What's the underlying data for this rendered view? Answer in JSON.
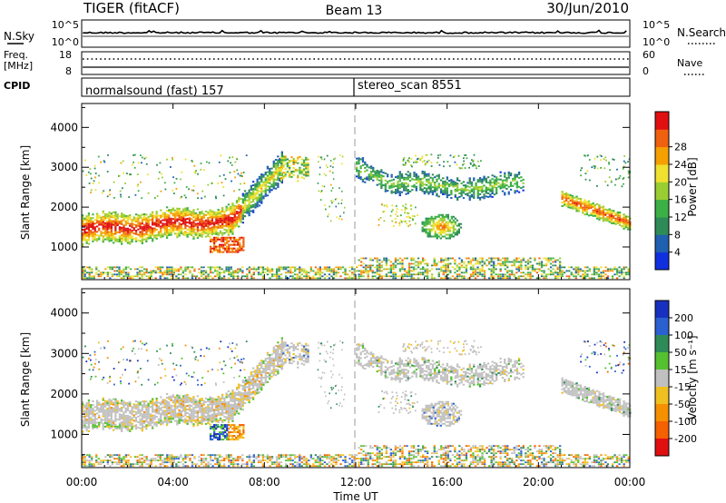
{
  "header": {
    "station": "TIGER (fitACF)",
    "beam": "Beam 13",
    "date": "30/Jun/2010"
  },
  "info_panels": {
    "nsky": {
      "label": "N.Sky",
      "ticks": [
        "10^5",
        "10^0"
      ],
      "right_label": "N.Search",
      "right_ticks": [
        "10^5",
        "10^0"
      ]
    },
    "freq": {
      "label_line1": "Freq.",
      "label_line2": "[MHz]",
      "ticks": [
        "18",
        "8"
      ],
      "right_label": "Nave",
      "right_ticks": [
        "60",
        "0"
      ]
    },
    "cpid": {
      "label": "CPID",
      "segments": [
        {
          "text": "normalsound (fast) 157"
        },
        {
          "text": "stereo_scan 8551"
        }
      ]
    }
  },
  "colors": {
    "grey": "#c0c0c0"
  },
  "chart_data": [
    {
      "type": "heatmap",
      "panel": "power",
      "ylabel": "Slant Range [km]",
      "ylim": [
        180,
        4600
      ],
      "yticks": [
        1000,
        2000,
        3000,
        4000
      ],
      "xlim_hours": [
        0,
        24
      ],
      "colorbar": {
        "label": "Power [dB]",
        "ticks": [
          "4",
          "8",
          "12",
          "16",
          "20",
          "24",
          "28"
        ],
        "colors": [
          "#1030e0",
          "#2060b0",
          "#2e8b57",
          "#3cb044",
          "#9acd32",
          "#f0e030",
          "#f5a000",
          "#ef6010",
          "#e01010"
        ]
      }
    },
    {
      "type": "heatmap",
      "panel": "velocity",
      "ylabel": "Slant Range [km]",
      "ylim": [
        180,
        4600
      ],
      "yticks": [
        1000,
        2000,
        3000,
        4000
      ],
      "xlim_hours": [
        0,
        24
      ],
      "colorbar": {
        "label": "Velocity [m s⁻¹]",
        "ticks": [
          "200",
          "100",
          "50",
          "15",
          "-15",
          "-50",
          "-100",
          "-200"
        ],
        "colors": [
          "#1830c0",
          "#2a60d0",
          "#2e8b57",
          "#55c030",
          "#c0c0c0",
          "#f0c020",
          "#f59000",
          "#f56000",
          "#e01010"
        ]
      }
    }
  ],
  "xaxis": {
    "label": "Time UT",
    "ticks": [
      "00:00",
      "04:00",
      "08:00",
      "12:00",
      "16:00",
      "20:00",
      "00:00"
    ]
  }
}
